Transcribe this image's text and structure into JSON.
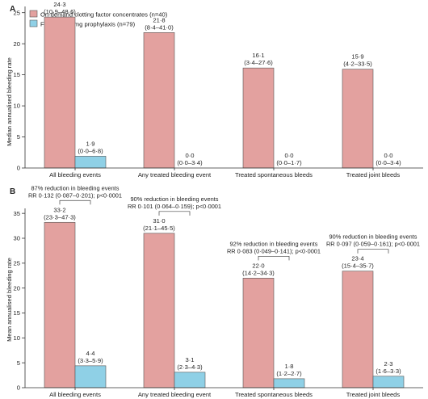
{
  "legend": [
    {
      "label": "On-demand clotting factor concentrates (n=40)",
      "color": "#e3a19f"
    },
    {
      "label": "Fitusiran 80 mg prophylaxis (n=79)",
      "color": "#8fd0e6"
    }
  ],
  "colors": {
    "on_demand": "#e3a19f",
    "fitusiran": "#8fd0e6",
    "axis": "#333333"
  },
  "chart_data": [
    {
      "type": "bar",
      "panel_label": "A",
      "ylabel": "Median annualised bleeding rate",
      "ylim": [
        0,
        26
      ],
      "yticks": [
        0,
        5,
        10,
        15,
        20,
        25
      ],
      "categories": [
        "All bleeding events",
        "Any treated bleeding event",
        "Treated spontaneous bleeds",
        "Treated joint bleeds"
      ],
      "series": [
        {
          "name": "On-demand clotting factor concentrates (n=40)",
          "values": [
            24.3,
            21.8,
            16.1,
            15.9
          ],
          "labels": [
            "24·3",
            "21·8",
            "16·1",
            "15·9"
          ],
          "ci": [
            "(10·9–48·6)",
            "(8·4–41·0)",
            "(3·4–27·6)",
            "(4·2–33·5)"
          ]
        },
        {
          "name": "Fitusiran 80 mg prophylaxis (n=79)",
          "values": [
            1.9,
            0.0,
            0.0,
            0.0
          ],
          "labels": [
            "1·9",
            "0·0",
            "0·0",
            "0·0"
          ],
          "ci": [
            "(0·0–6·8)",
            "(0·0–3·4)",
            "(0·0–1·7)",
            "(0·0–3·4)"
          ]
        }
      ]
    },
    {
      "type": "bar",
      "panel_label": "B",
      "ylabel": "Mean annualised bleeding rate",
      "ylim": [
        0,
        36
      ],
      "yticks": [
        0,
        5,
        10,
        15,
        20,
        25,
        30,
        35
      ],
      "categories": [
        "All bleeding events",
        "Any treated bleeding event",
        "Treated spontaneous bleeds",
        "Treated joint bleeds"
      ],
      "series": [
        {
          "name": "On-demand clotting factor concentrates (n=40)",
          "values": [
            33.2,
            31.0,
            22.0,
            23.4
          ],
          "labels": [
            "33·2",
            "31·0",
            "22·0",
            "23·4"
          ],
          "ci": [
            "(23·3–47·3)",
            "(21·1–45·5)",
            "(14·2–34·3)",
            "(15·4–35·7)"
          ]
        },
        {
          "name": "Fitusiran 80 mg prophylaxis (n=79)",
          "values": [
            4.4,
            3.1,
            1.8,
            2.3
          ],
          "labels": [
            "4·4",
            "3·1",
            "1·8",
            "2·3"
          ],
          "ci": [
            "(3·3–5·9)",
            "(2·3–4·3)",
            "(1·2–2·7)",
            "(1·6–3·3)"
          ]
        }
      ],
      "annotations": [
        {
          "line1": "87% reduction in bleeding events",
          "line2": "RR 0·132 (0·087–0·201); p<0·0001"
        },
        {
          "line1": "90% reduction in bleeding events",
          "line2": "RR 0·101 (0·064–0·159); p<0·0001"
        },
        {
          "line1": "92% reduction in bleeding events",
          "line2": "RR 0·083 (0·049–0·141); p<0·0001"
        },
        {
          "line1": "90% reduction in bleeding events",
          "line2": "RR 0·097 (0·059–0·161); p<0·0001"
        }
      ]
    }
  ]
}
